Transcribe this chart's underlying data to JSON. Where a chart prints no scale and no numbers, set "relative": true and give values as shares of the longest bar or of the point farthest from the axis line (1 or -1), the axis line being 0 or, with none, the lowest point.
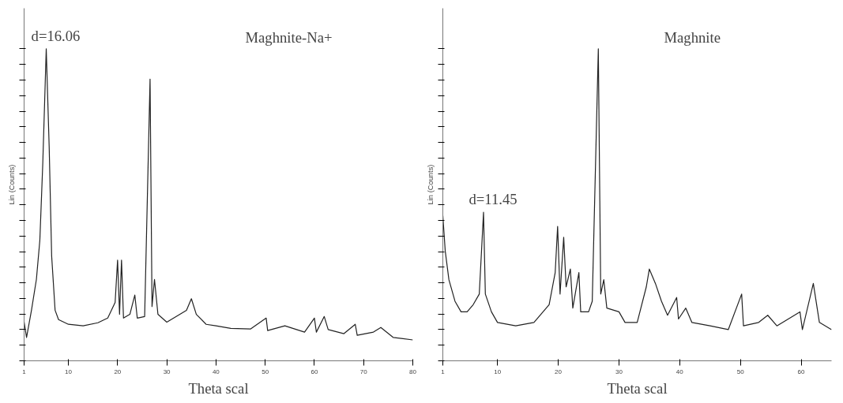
{
  "chart_data": [
    {
      "type": "line",
      "relative": true,
      "xlabel": "Theta scal",
      "ylabel": "Lin (Counts)",
      "tick_labels": "x",
      "grid": false,
      "line_style": "solid",
      "xlim": [
        1,
        80
      ],
      "xticks": [
        1,
        10,
        20,
        30,
        40,
        50,
        60,
        70,
        80
      ],
      "annotations": [
        {
          "text": "d=16.06",
          "x": 5.5,
          "y": 1
        },
        "Maghnite-Na+"
      ],
      "series": [
        {
          "color": "#222222",
          "x": [
            1.0,
            1.5,
            2.5,
            3.5,
            4.2,
            4.8,
            5.5,
            6.1,
            6.6,
            7.3,
            8,
            10,
            13,
            16,
            18,
            19.5,
            20,
            20.4,
            20.8,
            21.2,
            22.5,
            23.5,
            24,
            25.5,
            26.6,
            27,
            27.5,
            28.2,
            30,
            34,
            35,
            36,
            38,
            40,
            43,
            47,
            50.2,
            50.5,
            54,
            58,
            60,
            60.4,
            62,
            62.8,
            66,
            68.3,
            68.7,
            72,
            73.5,
            76,
            80
          ],
          "values": [
            0.124,
            0.075,
            0.162,
            0.261,
            0.386,
            0.634,
            1,
            0.684,
            0.336,
            0.162,
            0.132,
            0.117,
            0.112,
            0.122,
            0.137,
            0.187,
            0.323,
            0.149,
            0.323,
            0.137,
            0.149,
            0.211,
            0.137,
            0.142,
            0.903,
            0.174,
            0.261,
            0.149,
            0.124,
            0.162,
            0.199,
            0.149,
            0.117,
            0.112,
            0.104,
            0.102,
            0.137,
            0.097,
            0.112,
            0.092,
            0.137,
            0.092,
            0.142,
            0.1,
            0.087,
            0.117,
            0.082,
            0.092,
            0.107,
            0.075,
            0.067
          ]
        }
      ]
    },
    {
      "type": "line",
      "relative": true,
      "xlabel": "Theta scal",
      "ylabel": "Lin (Counts)",
      "tick_labels": "x",
      "grid": false,
      "line_style": "solid",
      "xlim": [
        1,
        65
      ],
      "xticks": [
        1,
        10,
        20,
        30,
        40,
        50,
        60
      ],
      "annotations": [
        {
          "text": "d=11.45",
          "x": 7.7,
          "y": 0.476
        },
        "Maghnite"
      ],
      "series": [
        {
          "color": "#222222",
          "x": [
            1.0,
            1.4,
            2,
            3,
            4,
            5,
            6,
            7,
            7.7,
            8,
            9,
            10,
            13,
            16,
            17.5,
            18.5,
            19.5,
            19.9,
            20.3,
            20.9,
            21.3,
            22,
            22.4,
            23.4,
            23.7,
            25,
            25.6,
            26.6,
            27,
            27.5,
            28,
            30,
            31,
            33,
            34.5,
            35,
            36,
            37,
            38,
            39.5,
            39.8,
            41,
            42,
            45,
            48,
            50.2,
            50.5,
            53,
            54.5,
            56,
            59.8,
            60.2,
            62,
            63,
            65
          ],
          "values": [
            0.465,
            0.351,
            0.26,
            0.191,
            0.157,
            0.157,
            0.18,
            0.214,
            0.476,
            0.214,
            0.157,
            0.123,
            0.112,
            0.123,
            0.157,
            0.18,
            0.283,
            0.431,
            0.214,
            0.396,
            0.237,
            0.294,
            0.169,
            0.283,
            0.157,
            0.157,
            0.191,
            1,
            0.214,
            0.26,
            0.169,
            0.157,
            0.123,
            0.123,
            0.237,
            0.294,
            0.248,
            0.191,
            0.146,
            0.203,
            0.134,
            0.169,
            0.123,
            0.112,
            0.1,
            0.214,
            0.112,
            0.123,
            0.146,
            0.112,
            0.157,
            0.1,
            0.248,
            0.123,
            0.1
          ]
        }
      ]
    }
  ]
}
